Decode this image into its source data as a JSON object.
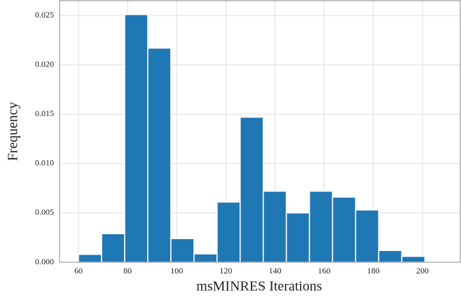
{
  "chart_data": {
    "type": "histogram",
    "x_label": "msMINRES Iterations",
    "y_label": "Frequency",
    "bins": [
      60,
      69.4,
      78.8,
      88.2,
      97.6,
      107,
      116.4,
      125.8,
      135.2,
      144.6,
      154,
      163.4,
      172.8,
      182.2,
      191.6,
      201
    ],
    "values": [
      0.0008,
      0.0029,
      0.0251,
      0.0217,
      0.0024,
      0.00085,
      0.0061,
      0.0147,
      0.0072,
      0.005,
      0.0072,
      0.0066,
      0.0053,
      0.0012,
      0.0006
    ],
    "color": "#1f77b4",
    "xlim": [
      52.3,
      215.4
    ],
    "ylim": [
      0,
      0.0265
    ],
    "xticks": [
      60,
      80,
      100,
      120,
      140,
      160,
      180,
      200
    ],
    "yticks": [
      {
        "value": 0,
        "label": "0.000"
      },
      {
        "value": 0.005,
        "label": "0.005"
      },
      {
        "value": 0.01,
        "label": "0.010"
      },
      {
        "value": 0.015,
        "label": "0.015"
      },
      {
        "value": 0.02,
        "label": "0.020"
      },
      {
        "value": 0.025,
        "label": "0.025"
      }
    ],
    "grid": true
  }
}
